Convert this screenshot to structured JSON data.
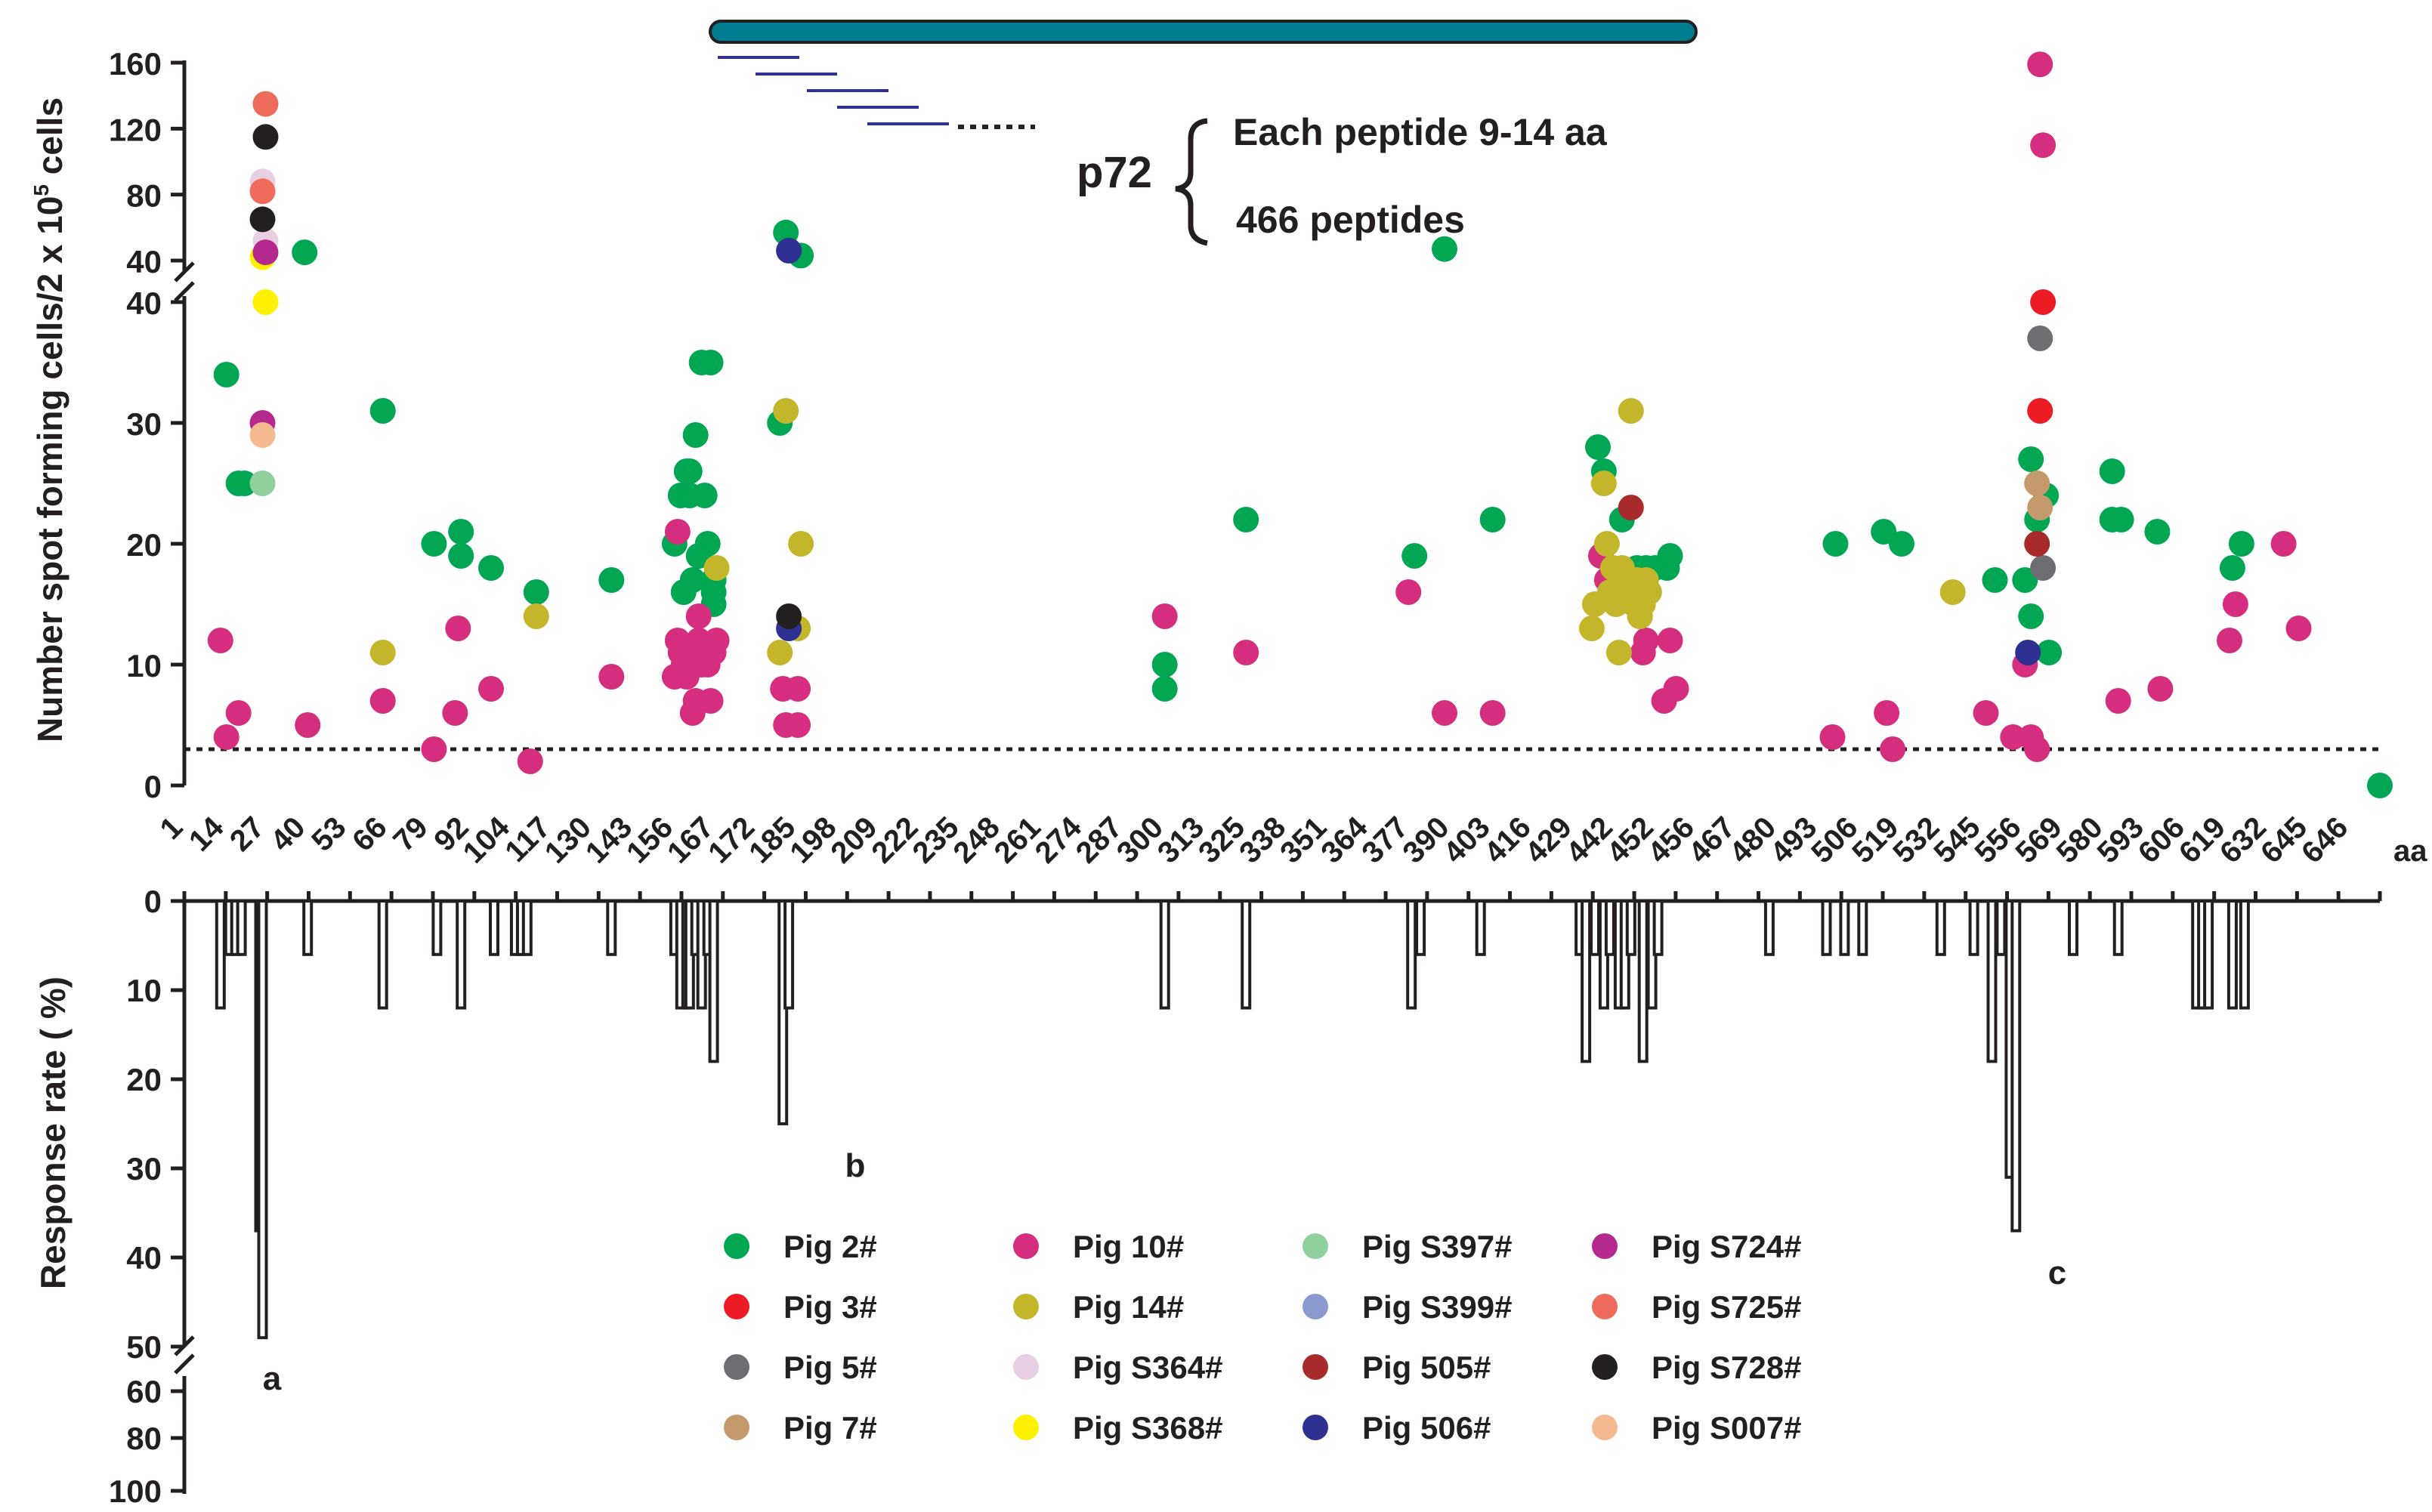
{
  "chart_data": {
    "type": "scatter+bar",
    "top_panel": {
      "type": "scatter",
      "ylabel": "Number spot forming cells/2 x 10",
      "ylabel_sup": "5",
      "ylabel_suffix": " cells",
      "y_lower_ticks": [
        "0",
        "10",
        "20",
        "30",
        "40"
      ],
      "y_upper_ticks": [
        "40",
        "80",
        "120",
        "160"
      ],
      "y_break": [
        40,
        40
      ],
      "ylim_lower": [
        0,
        40
      ],
      "ylim_upper": [
        40,
        160
      ],
      "threshold_line": 3,
      "protein_label": "p72",
      "peptide_desc_line1": "Each peptide 9-14 aa",
      "peptide_desc_line2": "466 peptides",
      "series": [
        {
          "name": "Pig 2#",
          "color": "#00a651",
          "points": [
            [
              14,
              34
            ],
            [
              18,
              25
            ],
            [
              20,
              25
            ],
            [
              40,
              45
            ],
            [
              66,
              31
            ],
            [
              83,
              20
            ],
            [
              92,
              21
            ],
            [
              92,
              19
            ],
            [
              102,
              18
            ],
            [
              117,
              16
            ],
            [
              142,
              17
            ],
            [
              163,
              20
            ],
            [
              165,
              24
            ],
            [
              166,
              16
            ],
            [
              167,
              26
            ],
            [
              168,
              24
            ],
            [
              168,
              26
            ],
            [
              169,
              17
            ],
            [
              170,
              29
            ],
            [
              171,
              19
            ],
            [
              172,
              35
            ],
            [
              173,
              24
            ],
            [
              174,
              20
            ],
            [
              175,
              35
            ],
            [
              176,
              17
            ],
            [
              176,
              16
            ],
            [
              176,
              15
            ],
            [
              198,
              30
            ],
            [
              200,
              57
            ],
            [
              205,
              43
            ],
            [
              326,
              10
            ],
            [
              326,
              8
            ],
            [
              353,
              22
            ],
            [
              409,
              19
            ],
            [
              419,
              47
            ],
            [
              435,
              22
            ],
            [
              470,
              28
            ],
            [
              472,
              26
            ],
            [
              478,
              22
            ],
            [
              483,
              18
            ],
            [
              486,
              18
            ],
            [
              487,
              16
            ],
            [
              489,
              18
            ],
            [
              494,
              19
            ],
            [
              493,
              18
            ],
            [
              549,
              20
            ],
            [
              565,
              21
            ],
            [
              571,
              20
            ],
            [
              602,
              17
            ],
            [
              612,
              17
            ],
            [
              614,
              14
            ],
            [
              614,
              27
            ],
            [
              616,
              22
            ],
            [
              619,
              24
            ],
            [
              620,
              11
            ],
            [
              641,
              26
            ],
            [
              641,
              22
            ],
            [
              644,
              22
            ],
            [
              656,
              21
            ],
            [
              681,
              18
            ],
            [
              684,
              20
            ],
            [
              730,
              0
            ]
          ]
        },
        {
          "name": "Pig 3#",
          "color": "#ed1c24",
          "points": [
            [
              617,
              31
            ],
            [
              618,
              40
            ]
          ]
        },
        {
          "name": "Pig 5#",
          "color": "#6d6e71",
          "points": [
            [
              617,
              37
            ],
            [
              618,
              18
            ]
          ]
        },
        {
          "name": "Pig 7#",
          "color": "#c49a6c",
          "points": [
            [
              616,
              25
            ],
            [
              617,
              23
            ]
          ]
        },
        {
          "name": "Pig 10#",
          "color": "#d62e7f",
          "points": [
            [
              12,
              12
            ],
            [
              14,
              4
            ],
            [
              18,
              6
            ],
            [
              41,
              5
            ],
            [
              66,
              7
            ],
            [
              83,
              3
            ],
            [
              90,
              6
            ],
            [
              91,
              13
            ],
            [
              102,
              8
            ],
            [
              115,
              2
            ],
            [
              142,
              9
            ],
            [
              163,
              9
            ],
            [
              164,
              12
            ],
            [
              164,
              21
            ],
            [
              165,
              11
            ],
            [
              166,
              10
            ],
            [
              167,
              9
            ],
            [
              168,
              11
            ],
            [
              168,
              10
            ],
            [
              169,
              6
            ],
            [
              170,
              7
            ],
            [
              171,
              12
            ],
            [
              171,
              14
            ],
            [
              172,
              10
            ],
            [
              173,
              11
            ],
            [
              174,
              10
            ],
            [
              175,
              7
            ],
            [
              176,
              11
            ],
            [
              177,
              12
            ],
            [
              199,
              8
            ],
            [
              200,
              5
            ],
            [
              204,
              8
            ],
            [
              204,
              5
            ],
            [
              326,
              14
            ],
            [
              353,
              11
            ],
            [
              407,
              16
            ],
            [
              419,
              6
            ],
            [
              435,
              6
            ],
            [
              471,
              19
            ],
            [
              473,
              17
            ],
            [
              481,
              17
            ],
            [
              484,
              14
            ],
            [
              485,
              11
            ],
            [
              486,
              12
            ],
            [
              492,
              7
            ],
            [
              494,
              12
            ],
            [
              496,
              8
            ],
            [
              548,
              4
            ],
            [
              566,
              6
            ],
            [
              568,
              3
            ],
            [
              599,
              6
            ],
            [
              608,
              4
            ],
            [
              612,
              10
            ],
            [
              614,
              4
            ],
            [
              616,
              3
            ],
            [
              617,
              159
            ],
            [
              618,
              110
            ],
            [
              643,
              7
            ],
            [
              657,
              8
            ],
            [
              680,
              12
            ],
            [
              682,
              15
            ],
            [
              698,
              20
            ],
            [
              703,
              13
            ]
          ]
        },
        {
          "name": "Pig 14#",
          "color": "#c4b62a",
          "points": [
            [
              66,
              11
            ],
            [
              117,
              14
            ],
            [
              177,
              18
            ],
            [
              198,
              11
            ],
            [
              200,
              31
            ],
            [
              204,
              13
            ],
            [
              205,
              20
            ],
            [
              468,
              13
            ],
            [
              469,
              15
            ],
            [
              472,
              25
            ],
            [
              473,
              20
            ],
            [
              474,
              16
            ],
            [
              475,
              18
            ],
            [
              476,
              15
            ],
            [
              477,
              11
            ],
            [
              478,
              18
            ],
            [
              479,
              17
            ],
            [
              480,
              16
            ],
            [
              481,
              31
            ],
            [
              482,
              15
            ],
            [
              483,
              17
            ],
            [
              484,
              14
            ],
            [
              485,
              15
            ],
            [
              486,
              17
            ],
            [
              487,
              16
            ],
            [
              588,
              16
            ]
          ]
        },
        {
          "name": "Pig S364#",
          "color": "#e9cfe4",
          "points": [
            [
              26,
              88
            ],
            [
              27,
              52
            ]
          ]
        },
        {
          "name": "Pig S368#",
          "color": "#fff200",
          "points": [
            [
              26,
              42
            ],
            [
              27,
              40
            ]
          ]
        },
        {
          "name": "Pig S397#",
          "color": "#8fd19e",
          "points": [
            [
              26,
              25
            ]
          ]
        },
        {
          "name": "Pig S399#",
          "color": "#8a9ad0",
          "points": []
        },
        {
          "name": "Pig 505#",
          "color": "#a92a2a",
          "points": [
            [
              481,
              23
            ],
            [
              616,
              20
            ]
          ]
        },
        {
          "name": "Pig 506#",
          "color": "#2e3192",
          "points": [
            [
              201,
              46
            ],
            [
              201,
              13
            ],
            [
              613,
              11
            ]
          ]
        },
        {
          "name": "Pig S724#",
          "color": "#b5298e",
          "points": [
            [
              26,
              30
            ],
            [
              27,
              45
            ]
          ]
        },
        {
          "name": "Pig S725#",
          "color": "#ef6b5b",
          "points": [
            [
              26,
              82
            ],
            [
              27,
              135
            ]
          ]
        },
        {
          "name": "Pig S728#",
          "color": "#231f20",
          "points": [
            [
              26,
              65
            ],
            [
              27,
              115
            ],
            [
              201,
              14
            ]
          ]
        },
        {
          "name": "Pig S007#",
          "color": "#f5b98f",
          "points": [
            [
              26,
              29
            ]
          ]
        }
      ],
      "peptide_bar_color": "#007c91",
      "peptide_tile_color": "#2e3192"
    },
    "x_axis": {
      "tick_labels": [
        "1",
        "14",
        "27",
        "40",
        "53",
        "66",
        "79",
        "92",
        "104",
        "117",
        "130",
        "143",
        "156",
        "167",
        "172",
        "185",
        "198",
        "209",
        "222",
        "235",
        "248",
        "261",
        "274",
        "287",
        "300",
        "313",
        "325",
        "338",
        "351",
        "364",
        "377",
        "390",
        "403",
        "416",
        "429",
        "442",
        "452",
        "456",
        "467",
        "480",
        "493",
        "506",
        "519",
        "532",
        "545",
        "556",
        "569",
        "580",
        "593",
        "606",
        "619",
        "632",
        "645",
        "646"
      ],
      "unit_label": "aa"
    },
    "bottom_panel": {
      "type": "bar",
      "ylabel": "Response rate ( %)",
      "y_ticks_main": [
        "0",
        "10",
        "20",
        "30",
        "40",
        "50"
      ],
      "y_ticks_broken": [
        "60",
        "80",
        "100"
      ],
      "ylim": [
        0,
        100
      ],
      "annotations": [
        "a",
        "b",
        "c"
      ],
      "bars": [
        [
          12,
          12
        ],
        [
          15,
          6
        ],
        [
          17,
          6
        ],
        [
          19,
          6
        ],
        [
          25,
          37
        ],
        [
          26,
          49
        ],
        [
          41,
          6
        ],
        [
          66,
          12
        ],
        [
          84,
          6
        ],
        [
          92,
          12
        ],
        [
          103,
          6
        ],
        [
          110,
          6
        ],
        [
          112,
          6
        ],
        [
          114,
          6
        ],
        [
          142,
          6
        ],
        [
          163,
          6
        ],
        [
          165,
          12
        ],
        [
          167,
          12
        ],
        [
          168,
          12
        ],
        [
          170,
          6
        ],
        [
          172,
          12
        ],
        [
          174,
          6
        ],
        [
          176,
          18
        ],
        [
          199,
          25
        ],
        [
          201,
          12
        ],
        [
          326,
          12
        ],
        [
          353,
          12
        ],
        [
          408,
          12
        ],
        [
          411,
          6
        ],
        [
          431,
          6
        ],
        [
          464,
          6
        ],
        [
          466,
          18
        ],
        [
          469,
          6
        ],
        [
          472,
          12
        ],
        [
          474,
          6
        ],
        [
          477,
          12
        ],
        [
          479,
          12
        ],
        [
          481,
          6
        ],
        [
          485,
          18
        ],
        [
          488,
          12
        ],
        [
          490,
          6
        ],
        [
          527,
          6
        ],
        [
          546,
          6
        ],
        [
          552,
          6
        ],
        [
          558,
          6
        ],
        [
          584,
          6
        ],
        [
          595,
          6
        ],
        [
          601,
          18
        ],
        [
          604,
          6
        ],
        [
          607,
          31
        ],
        [
          609,
          37
        ],
        [
          628,
          6
        ],
        [
          643,
          6
        ],
        [
          669,
          12
        ],
        [
          671,
          12
        ],
        [
          673,
          12
        ],
        [
          681,
          12
        ],
        [
          685,
          12
        ]
      ]
    }
  }
}
